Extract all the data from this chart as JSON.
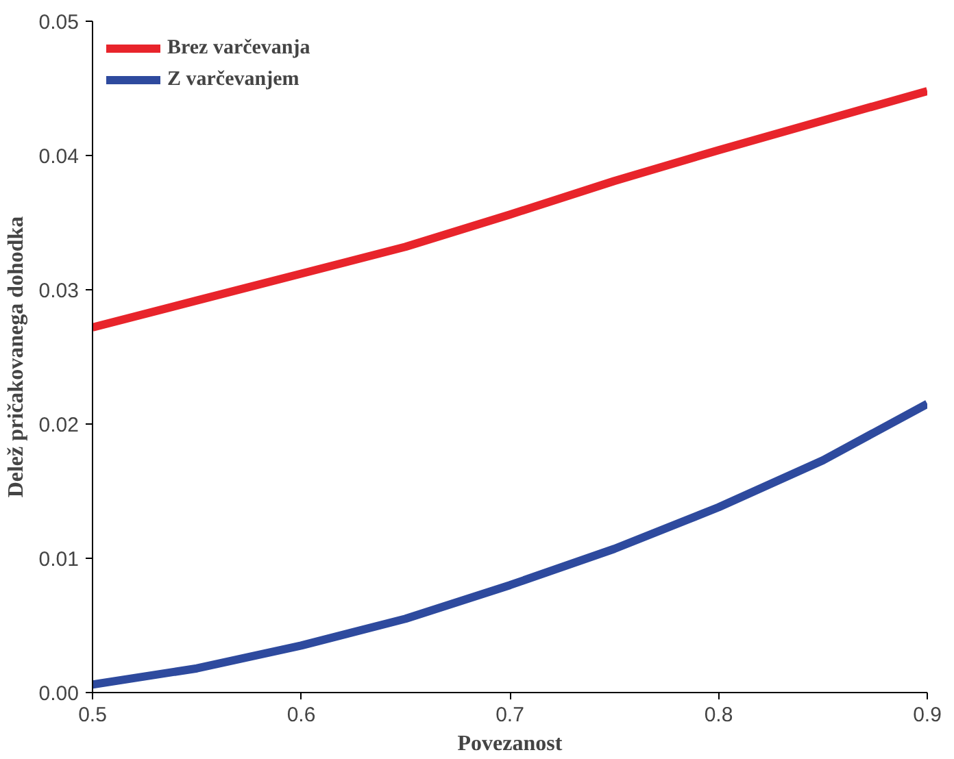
{
  "chart_data": {
    "type": "line",
    "xlabel": "Povezanost",
    "ylabel": "Delež pričakovanega dohodka",
    "x": [
      0.5,
      0.55,
      0.6,
      0.65,
      0.7,
      0.75,
      0.8,
      0.85,
      0.9
    ],
    "series": [
      {
        "name": "Brez varčevanja",
        "color": "#e8242b",
        "values": [
          0.0272,
          0.0292,
          0.0312,
          0.0332,
          0.0356,
          0.0381,
          0.0404,
          0.0426,
          0.0448
        ]
      },
      {
        "name": "Z varčevanjem",
        "color": "#2e4a9e",
        "values": [
          0.0006,
          0.0018,
          0.0035,
          0.0055,
          0.008,
          0.0107,
          0.0138,
          0.0173,
          0.0215
        ]
      }
    ],
    "xlim": [
      0.5,
      0.9
    ],
    "xticks": [
      0.5,
      0.6,
      0.7,
      0.8,
      0.9
    ],
    "ylim": [
      0,
      0.05
    ],
    "yticks": [
      {
        "value": 0,
        "label": "0.00"
      },
      0.01,
      0.02,
      0.03,
      0.04,
      0.05
    ],
    "legend": "top left",
    "grid": false
  }
}
